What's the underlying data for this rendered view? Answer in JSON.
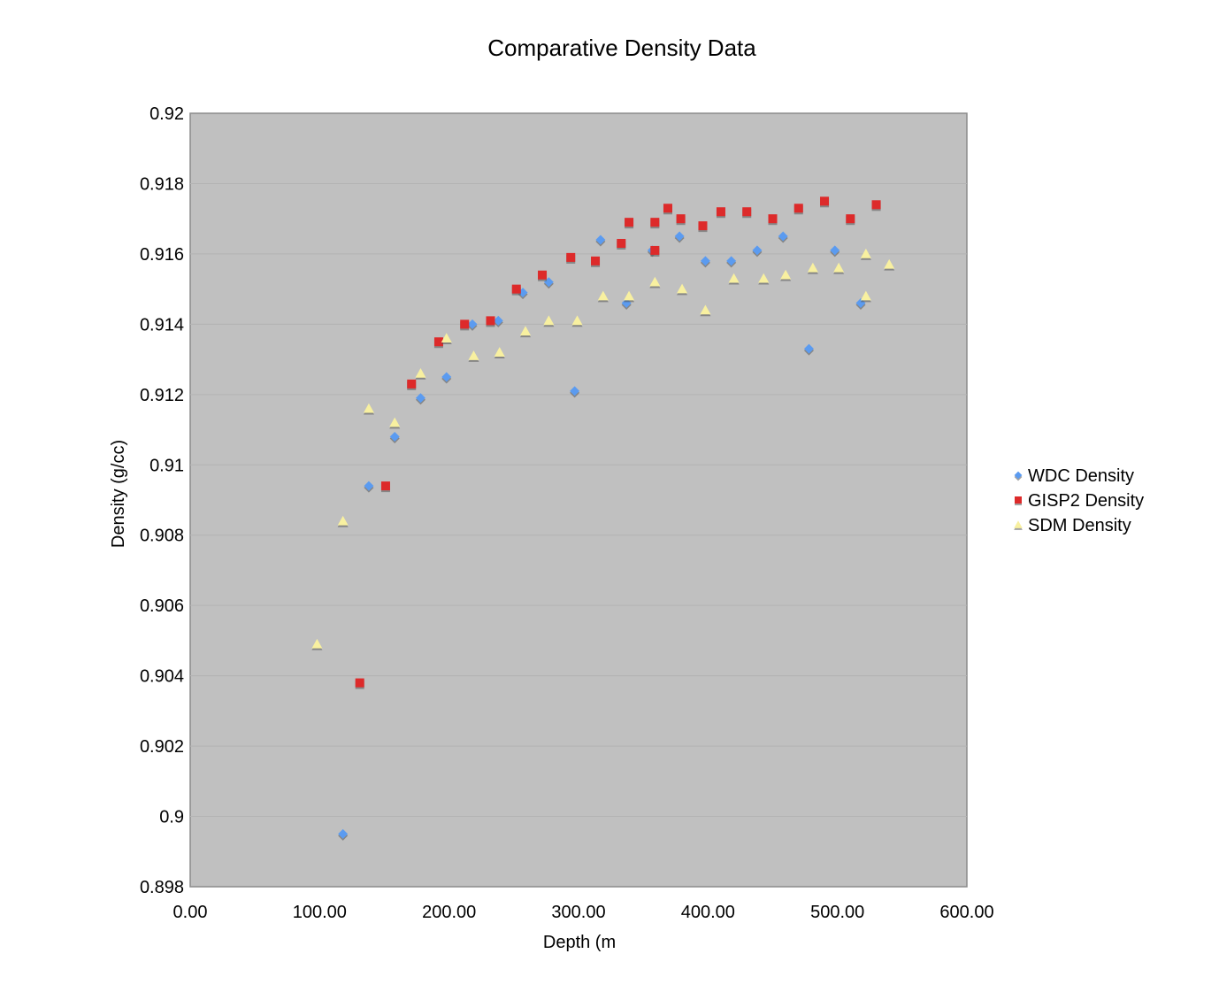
{
  "chart_data": {
    "type": "scatter",
    "title": "Comparative Density Data",
    "xlabel": "Depth (m",
    "ylabel": "Density (g/cc)",
    "xlim": [
      0,
      600
    ],
    "ylim": [
      0.898,
      0.92
    ],
    "x_ticks": [
      "0.00",
      "100.00",
      "200.00",
      "300.00",
      "400.00",
      "500.00",
      "600.00"
    ],
    "y_ticks": [
      "0.898",
      "0.9",
      "0.902",
      "0.904",
      "0.906",
      "0.908",
      "0.91",
      "0.912",
      "0.914",
      "0.916",
      "0.918",
      "0.92"
    ],
    "grid": true,
    "plot_background": "#c0c0c0",
    "legend_position": "right",
    "series": [
      {
        "name": "WDC Density",
        "marker": "diamond",
        "color": "#5b9bf0",
        "points": [
          [
            118,
            0.8995
          ],
          [
            138,
            0.9094
          ],
          [
            158,
            0.9108
          ],
          [
            178,
            0.9119
          ],
          [
            198,
            0.9125
          ],
          [
            218,
            0.914
          ],
          [
            238,
            0.9141
          ],
          [
            257,
            0.9149
          ],
          [
            277,
            0.9152
          ],
          [
            297,
            0.9121
          ],
          [
            317,
            0.9164
          ],
          [
            337,
            0.9146
          ],
          [
            357,
            0.9161
          ],
          [
            378,
            0.9165
          ],
          [
            398,
            0.9158
          ],
          [
            418,
            0.9158
          ],
          [
            438,
            0.9161
          ],
          [
            458,
            0.9165
          ],
          [
            478,
            0.9133
          ],
          [
            498,
            0.9161
          ],
          [
            518,
            0.9146
          ]
        ]
      },
      {
        "name": "GISP2 Density",
        "marker": "square",
        "color": "#dd2a2a",
        "points": [
          [
            131,
            0.9038
          ],
          [
            151,
            0.9094
          ],
          [
            171,
            0.9123
          ],
          [
            192,
            0.9135
          ],
          [
            212,
            0.914
          ],
          [
            232,
            0.9141
          ],
          [
            252,
            0.915
          ],
          [
            272,
            0.9154
          ],
          [
            294,
            0.9159
          ],
          [
            313,
            0.9158
          ],
          [
            333,
            0.9163
          ],
          [
            339,
            0.9169
          ],
          [
            359,
            0.9161
          ],
          [
            359,
            0.9169
          ],
          [
            369,
            0.9173
          ],
          [
            379,
            0.917
          ],
          [
            396,
            0.9168
          ],
          [
            410,
            0.9172
          ],
          [
            430,
            0.9172
          ],
          [
            450,
            0.917
          ],
          [
            470,
            0.9173
          ],
          [
            490,
            0.9175
          ],
          [
            510,
            0.917
          ],
          [
            530,
            0.9174
          ]
        ]
      },
      {
        "name": "SDM Density",
        "marker": "triangle",
        "color": "#f8f0a0",
        "points": [
          [
            98,
            0.9049
          ],
          [
            118,
            0.9084
          ],
          [
            138,
            0.9116
          ],
          [
            158,
            0.9112
          ],
          [
            178,
            0.9126
          ],
          [
            198,
            0.9136
          ],
          [
            219,
            0.9131
          ],
          [
            239,
            0.9132
          ],
          [
            259,
            0.9138
          ],
          [
            277,
            0.9141
          ],
          [
            299,
            0.9141
          ],
          [
            319,
            0.9148
          ],
          [
            339,
            0.9148
          ],
          [
            359,
            0.9152
          ],
          [
            380,
            0.915
          ],
          [
            398,
            0.9144
          ],
          [
            420,
            0.9153
          ],
          [
            443,
            0.9153
          ],
          [
            460,
            0.9154
          ],
          [
            481,
            0.9156
          ],
          [
            501,
            0.9156
          ],
          [
            522,
            0.916
          ],
          [
            522,
            0.9148
          ],
          [
            540,
            0.9157
          ]
        ]
      }
    ]
  }
}
